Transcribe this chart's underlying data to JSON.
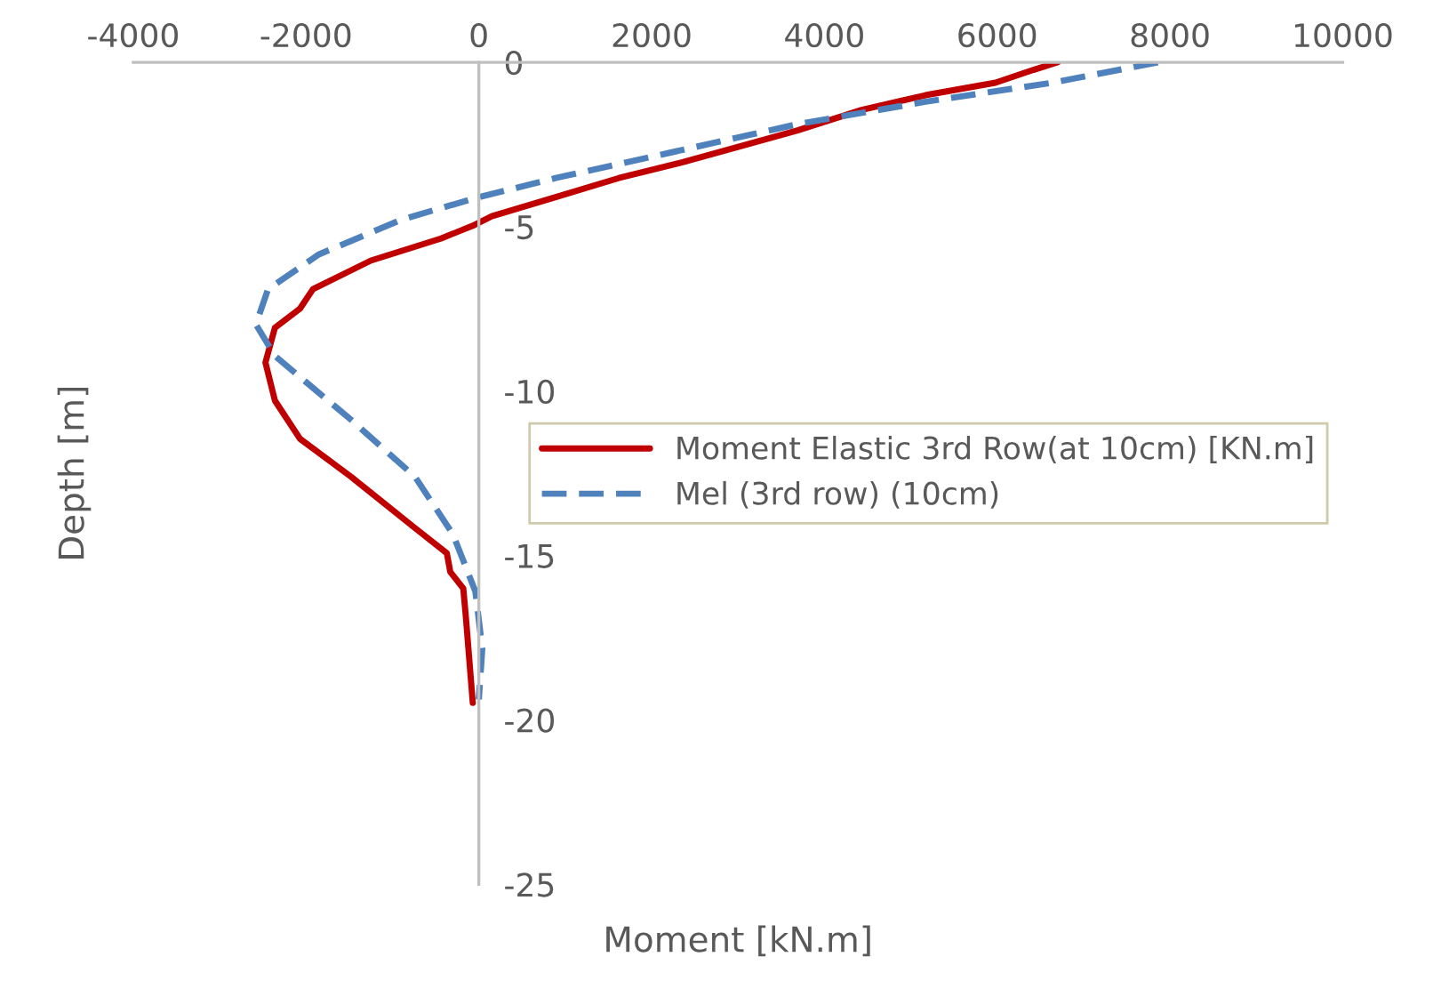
{
  "chart_data": {
    "type": "line",
    "xlabel": "Moment [kN.m]",
    "ylabel": "Depth [m]",
    "xlim": [
      -4000,
      10000
    ],
    "xticks": [
      -4000,
      -2000,
      0,
      2000,
      4000,
      6000,
      8000,
      10000
    ],
    "ylim": [
      -25,
      0
    ],
    "yticks": [
      -25,
      -20,
      -15,
      -10,
      -5,
      0
    ],
    "grid": false,
    "legend": "right",
    "marker": "none",
    "series": [
      {
        "name": "Moment Elastic 3rd Row(at 10cm) [KN.m]",
        "color": "#c00000",
        "line_style": "solid",
        "x": [
          6700,
          6420,
          5980,
          5170,
          4430,
          3690,
          3030,
          2360,
          1620,
          890,
          150,
          -70,
          -440,
          -1250,
          -1920,
          -2070,
          -2360,
          -2470,
          -2360,
          -2070,
          -1480,
          -740,
          -370,
          -330,
          -180,
          -150,
          -70
        ],
        "values": [
          0,
          -0.23,
          -0.62,
          -1.0,
          -1.45,
          -2.07,
          -2.55,
          -3.04,
          -3.52,
          -4.1,
          -4.68,
          -4.97,
          -5.36,
          -6.03,
          -6.9,
          -7.49,
          -8.07,
          -9.13,
          -10.29,
          -11.45,
          -12.6,
          -14.16,
          -14.93,
          -15.5,
          -16.0,
          -16.87,
          -19.48
        ]
      },
      {
        "name": "Mel (3rd row) (10cm)",
        "color": "#4f81bd",
        "line_style": "dashed",
        "x": [
          7860,
          6640,
          5170,
          3690,
          2210,
          890,
          0,
          -890,
          -1850,
          -2440,
          -2580,
          -2360,
          -1480,
          -740,
          -300,
          -40,
          40,
          0
        ],
        "values": [
          0,
          -0.62,
          -1.2,
          -1.88,
          -2.75,
          -3.52,
          -4.1,
          -4.78,
          -5.84,
          -6.9,
          -7.97,
          -8.93,
          -10.87,
          -12.6,
          -14.35,
          -16.09,
          -17.83,
          -19.38
        ]
      }
    ]
  }
}
